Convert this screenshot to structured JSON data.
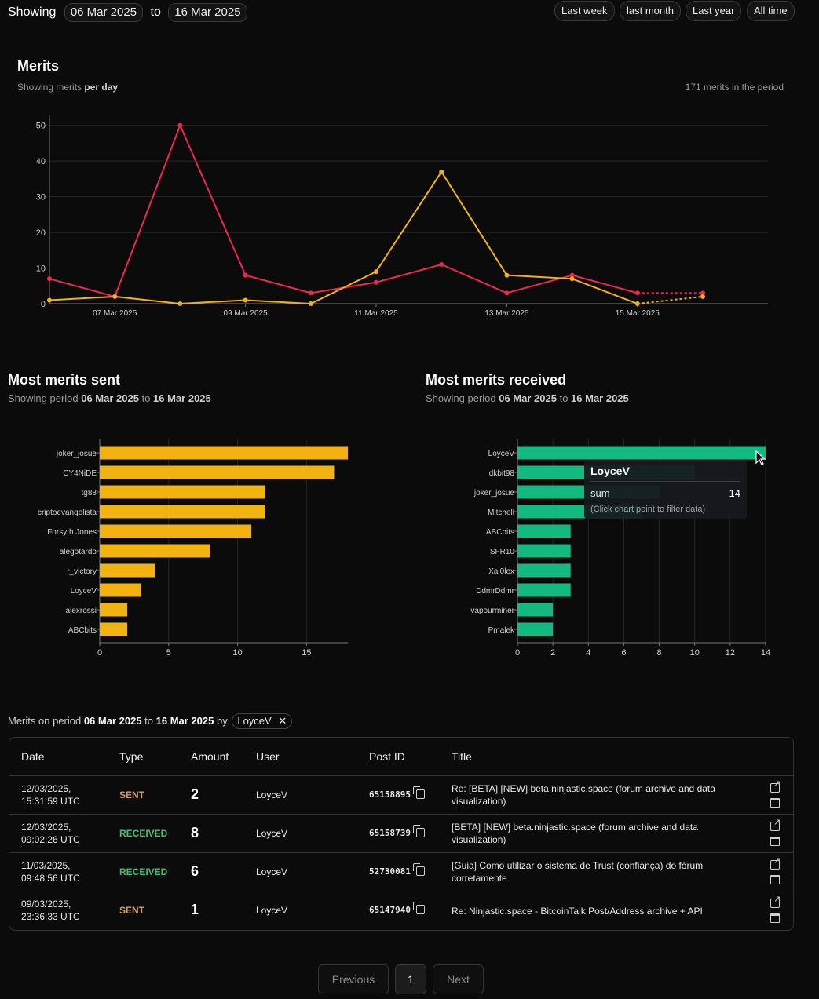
{
  "header": {
    "showing_label": "Showing",
    "from_date": "06 Mar 2025",
    "to_label": "to",
    "to_date": "16 Mar 2025",
    "ranges": [
      "Last week",
      "last month",
      "Last year",
      "All time"
    ]
  },
  "merits_chart": {
    "title": "Merits",
    "subtitle_prefix": "Showing merits ",
    "subtitle_bold": "per day",
    "total_text": "171 merits in the period"
  },
  "chart_data": [
    {
      "type": "line",
      "title": "Merits",
      "x": [
        "06 Mar 2025",
        "07 Mar 2025",
        "08 Mar 2025",
        "09 Mar 2025",
        "10 Mar 2025",
        "11 Mar 2025",
        "12 Mar 2025",
        "13 Mar 2025",
        "14 Mar 2025",
        "15 Mar 2025",
        "16 Mar 2025"
      ],
      "x_tick_labels": [
        "07 Mar 2025",
        "09 Mar 2025",
        "11 Mar 2025",
        "13 Mar 2025",
        "15 Mar 2025"
      ],
      "y_ticks": [
        0,
        10,
        20,
        30,
        40,
        50
      ],
      "ylim": [
        0,
        55
      ],
      "grid": true,
      "series": [
        {
          "values": [
            7,
            2,
            50,
            8,
            3,
            6,
            11,
            3,
            8,
            3,
            3
          ],
          "color": "#f0264f"
        },
        {
          "values": [
            1,
            2,
            0,
            1,
            0,
            9,
            37,
            8,
            7,
            0,
            2
          ],
          "color": "#f2b20f"
        }
      ],
      "dashed_last_segment": true
    },
    {
      "type": "bar",
      "orientation": "horizontal",
      "title": "Most merits sent",
      "categories": [
        "joker_josue",
        "CY4NiDE",
        "tg88",
        "criptoevangelista",
        "Forsyth Jones",
        "alegotardo",
        "r_victory",
        "LoyceV",
        "alexrossi",
        "ABCbits"
      ],
      "values": [
        18,
        17,
        12,
        12,
        11,
        8,
        4,
        3,
        2,
        2
      ],
      "x_ticks": [
        0,
        5,
        10,
        15
      ],
      "xlim": [
        0,
        18
      ],
      "color": "#f2b20f"
    },
    {
      "type": "bar",
      "orientation": "horizontal",
      "title": "Most merits received",
      "categories": [
        "LoyceV",
        "dkbit98",
        "joker_josue",
        "Mitchell",
        "ABCbits",
        "SFR10",
        "Xal0lex",
        "DdmrDdmr",
        "vapourminer",
        "Pmalek"
      ],
      "values": [
        14,
        10,
        8,
        7,
        3,
        3,
        3,
        3,
        2,
        2
      ],
      "x_ticks": [
        0,
        2,
        4,
        6,
        8,
        10,
        12,
        14
      ],
      "xlim": [
        0,
        14
      ],
      "color": "#12b981"
    }
  ],
  "sent_panel": {
    "title": "Most merits sent",
    "period_prefix": "Showing period ",
    "from": "06 Mar 2025",
    "to_word": " to ",
    "to": "16 Mar 2025"
  },
  "received_panel": {
    "title": "Most merits received",
    "period_prefix": "Showing period ",
    "from": "06 Mar 2025",
    "to_word": " to ",
    "to": "16 Mar 2025"
  },
  "tooltip": {
    "user": "LoyceV",
    "key": "sum",
    "value": "14",
    "hint": "(Click chart point to filter data)"
  },
  "filter": {
    "prefix": "Merits on period ",
    "from": "06 Mar 2025",
    "to_word": " to ",
    "to": "16 Mar 2025",
    "by_word": " by ",
    "user_chip": "LoyceV"
  },
  "table": {
    "headers": [
      "Date",
      "Type",
      "Amount",
      "User",
      "Post ID",
      "Title"
    ],
    "rows": [
      {
        "date_line1": "12/03/2025,",
        "date_line2": "15:31:59 UTC",
        "type": "SENT",
        "amount": "2",
        "user": "LoyceV",
        "post_id": "65158895",
        "title": "Re: [BETA] [NEW] beta.ninjastic.space (forum archive and data visualization)"
      },
      {
        "date_line1": "12/03/2025,",
        "date_line2": "09:02:26 UTC",
        "type": "RECEIVED",
        "amount": "8",
        "user": "LoyceV",
        "post_id": "65158739",
        "title": "[BETA] [NEW] beta.ninjastic.space (forum archive and data visualization)"
      },
      {
        "date_line1": "11/03/2025,",
        "date_line2": "09:48:56 UTC",
        "type": "RECEIVED",
        "amount": "6",
        "user": "LoyceV",
        "post_id": "52730081",
        "title": "[Guia] Como utilizar o sistema de Trust (confiança) do fórum corretamente"
      },
      {
        "date_line1": "09/03/2025,",
        "date_line2": "23:36:33 UTC",
        "type": "SENT",
        "amount": "1",
        "user": "LoyceV",
        "post_id": "65147940",
        "title": "Re: Ninjastic.space - BitcoinTalk Post/Address archive + API"
      }
    ]
  },
  "pagination": {
    "previous": "Previous",
    "page": "1",
    "next": "Next"
  }
}
